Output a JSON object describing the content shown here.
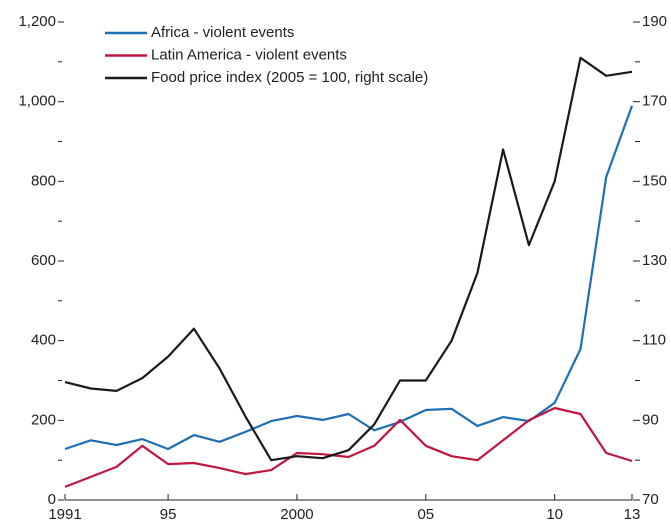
{
  "chart_data": {
    "type": "line",
    "x": [
      1991,
      1992,
      1993,
      1994,
      1995,
      1996,
      1997,
      1998,
      1999,
      2000,
      2001,
      2002,
      2003,
      2004,
      2005,
      2006,
      2007,
      2008,
      2009,
      2010,
      2011,
      2012,
      2013
    ],
    "xlim": [
      1991,
      2013
    ],
    "xticks": [
      {
        "value": 1991,
        "label": "1991"
      },
      {
        "value": 1995,
        "label": "95"
      },
      {
        "value": 2000,
        "label": "2000"
      },
      {
        "value": 2005,
        "label": "05"
      },
      {
        "value": 2010,
        "label": "10"
      },
      {
        "value": 2013,
        "label": "13"
      }
    ],
    "ylim": [
      0,
      1200
    ],
    "yticks": [
      0,
      200,
      400,
      600,
      800,
      {
        "value": 1000,
        "label": "1,000"
      },
      {
        "value": 1200,
        "label": "1,200"
      }
    ],
    "yminorticks": [
      100,
      300,
      500,
      700,
      900,
      1100
    ],
    "y2lim": [
      70,
      190
    ],
    "y2ticks": [
      70,
      90,
      110,
      130,
      150,
      170,
      190
    ],
    "y2minorticks": [
      80,
      100,
      120,
      140,
      160,
      180
    ],
    "legend": "upper left",
    "series": [
      {
        "name": "Africa - violent events",
        "color": "#1f6fb4",
        "values": [
          128,
          150,
          138,
          153,
          128,
          163,
          146,
          171,
          198,
          211,
          201,
          216,
          175,
          196,
          226,
          229,
          186,
          208,
          198,
          244,
          379,
          811,
          990
        ]
      },
      {
        "name": "Latin America - violent events",
        "color": "#c0173f",
        "values": [
          33,
          58,
          83,
          136,
          90,
          93,
          80,
          65,
          75,
          118,
          115,
          108,
          136,
          201,
          136,
          110,
          100,
          150,
          200,
          231,
          216,
          118,
          98
        ]
      },
      {
        "name": "Food price index (2005 = 100, right scale)",
        "color": "#1a1a1a",
        "axis": "y2",
        "values": [
          99.6,
          98,
          97.4,
          100.6,
          106,
          113,
          103,
          91,
          80,
          81,
          80.5,
          82.5,
          89,
          100,
          100,
          110,
          127,
          158,
          134,
          150,
          181,
          176.5,
          177.5
        ]
      }
    ]
  }
}
